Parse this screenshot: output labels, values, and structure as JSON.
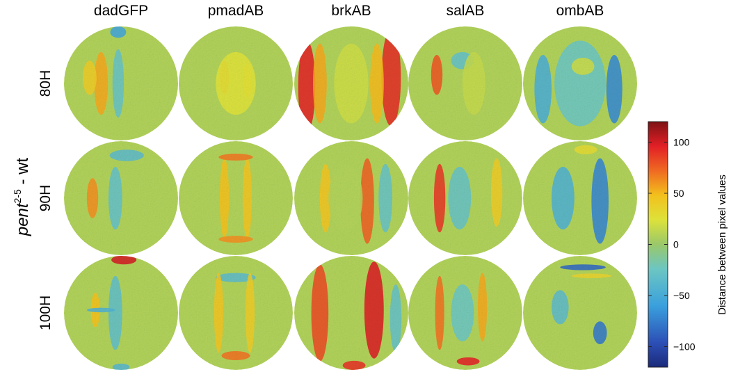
{
  "chart_data": {
    "type": "heatmap",
    "y_group_label": {
      "base": "pent",
      "sup": "2-5",
      "suffix": " - wt"
    },
    "columns": [
      "dadGFP",
      "pmadAB",
      "brkAB",
      "salAB",
      "ombAB"
    ],
    "rows": [
      "80H",
      "90H",
      "100H"
    ],
    "colorbar": {
      "label": "Distance between pixel values",
      "range": [
        -120,
        120
      ],
      "ticks": [
        100,
        50,
        0,
        -50,
        -100
      ],
      "tick_labels": [
        "100",
        "50",
        "0",
        "−50",
        "−100"
      ],
      "colormap": "jet"
    },
    "panels": [
      {
        "row": "80H",
        "col": "dadGFP",
        "features": [
          {
            "u": -0.35,
            "v": 0,
            "w": 0.12,
            "h": 0.55,
            "val": 55
          },
          {
            "u": -0.05,
            "v": 0,
            "w": 0.1,
            "h": 0.6,
            "val": -28
          },
          {
            "u": -0.05,
            "v": -0.9,
            "w": 0.14,
            "h": 0.1,
            "val": -55
          },
          {
            "u": -0.55,
            "v": -0.1,
            "w": 0.12,
            "h": 0.3,
            "val": 40
          }
        ]
      },
      {
        "row": "80H",
        "col": "pmadAB",
        "features": [
          {
            "u": -0.2,
            "v": -0.1,
            "w": 0.08,
            "h": 0.3,
            "val": 58
          },
          {
            "u": 0.2,
            "v": -0.05,
            "w": 0.08,
            "h": 0.3,
            "val": 48
          },
          {
            "u": 0,
            "v": 0,
            "w": 0.35,
            "h": 0.55,
            "val": 25
          }
        ]
      },
      {
        "row": "80H",
        "col": "brkAB",
        "features": [
          {
            "u": -0.78,
            "v": 0.05,
            "w": 0.15,
            "h": 0.8,
            "val": 95
          },
          {
            "u": 0.7,
            "v": -0.1,
            "w": 0.17,
            "h": 0.85,
            "val": 92
          },
          {
            "u": -0.55,
            "v": 0,
            "w": 0.12,
            "h": 0.7,
            "val": 55
          },
          {
            "u": 0.45,
            "v": 0,
            "w": 0.12,
            "h": 0.7,
            "val": 50
          },
          {
            "u": 0,
            "v": 0,
            "w": 0.3,
            "h": 0.7,
            "val": 18
          }
        ]
      },
      {
        "row": "80H",
        "col": "salAB",
        "features": [
          {
            "u": -0.5,
            "v": -0.15,
            "w": 0.1,
            "h": 0.35,
            "val": 78
          },
          {
            "u": -0.05,
            "v": -0.4,
            "w": 0.2,
            "h": 0.15,
            "val": -30
          },
          {
            "u": 0.15,
            "v": 0,
            "w": 0.2,
            "h": 0.55,
            "val": 15
          }
        ]
      },
      {
        "row": "80H",
        "col": "ombAB",
        "features": [
          {
            "u": 0.6,
            "v": 0.1,
            "w": 0.14,
            "h": 0.6,
            "val": -70
          },
          {
            "u": -0.65,
            "v": 0.1,
            "w": 0.15,
            "h": 0.6,
            "val": -48
          },
          {
            "u": 0,
            "v": 0,
            "w": 0.45,
            "h": 0.75,
            "val": -25
          },
          {
            "u": 0.05,
            "v": -0.3,
            "w": 0.2,
            "h": 0.15,
            "val": 18
          }
        ]
      },
      {
        "row": "90H",
        "col": "dadGFP",
        "features": [
          {
            "u": -0.5,
            "v": 0,
            "w": 0.1,
            "h": 0.35,
            "val": 62
          },
          {
            "u": -0.1,
            "v": 0,
            "w": 0.12,
            "h": 0.55,
            "val": -30
          },
          {
            "u": 0.1,
            "v": -0.75,
            "w": 0.3,
            "h": 0.1,
            "val": -35
          }
        ]
      },
      {
        "row": "90H",
        "col": "pmadAB",
        "features": [
          {
            "u": -0.2,
            "v": 0,
            "w": 0.08,
            "h": 0.7,
            "val": 48
          },
          {
            "u": 0.2,
            "v": 0,
            "w": 0.08,
            "h": 0.7,
            "val": 45
          },
          {
            "u": 0,
            "v": -0.72,
            "w": 0.3,
            "h": 0.06,
            "val": 68
          },
          {
            "u": 0,
            "v": 0.72,
            "w": 0.3,
            "h": 0.06,
            "val": 62
          }
        ]
      },
      {
        "row": "90H",
        "col": "brkAB",
        "features": [
          {
            "u": 0.28,
            "v": 0.05,
            "w": 0.12,
            "h": 0.75,
            "val": 75
          },
          {
            "u": -0.45,
            "v": 0,
            "w": 0.1,
            "h": 0.6,
            "val": 45
          },
          {
            "u": 0.6,
            "v": 0,
            "w": 0.12,
            "h": 0.6,
            "val": -28
          },
          {
            "u": -0.1,
            "v": 0,
            "w": 0.3,
            "h": 0.6,
            "val": 8
          }
        ]
      },
      {
        "row": "90H",
        "col": "salAB",
        "features": [
          {
            "u": -0.45,
            "v": 0,
            "w": 0.1,
            "h": 0.6,
            "val": 88
          },
          {
            "u": -0.1,
            "v": 0,
            "w": 0.2,
            "h": 0.55,
            "val": -28
          },
          {
            "u": 0.55,
            "v": -0.1,
            "w": 0.1,
            "h": 0.6,
            "val": 40
          }
        ]
      },
      {
        "row": "90H",
        "col": "ombAB",
        "features": [
          {
            "u": 0.35,
            "v": 0.05,
            "w": 0.15,
            "h": 0.75,
            "val": -72
          },
          {
            "u": -0.3,
            "v": 0,
            "w": 0.2,
            "h": 0.55,
            "val": -45
          },
          {
            "u": 0.1,
            "v": -0.85,
            "w": 0.2,
            "h": 0.08,
            "val": 30
          }
        ]
      },
      {
        "row": "100H",
        "col": "dadGFP",
        "features": [
          {
            "u": 0.05,
            "v": -0.93,
            "w": 0.22,
            "h": 0.08,
            "val": 100
          },
          {
            "u": -0.45,
            "v": -0.05,
            "w": 0.08,
            "h": 0.3,
            "val": 48
          },
          {
            "u": -0.1,
            "v": 0,
            "w": 0.12,
            "h": 0.65,
            "val": -32
          },
          {
            "u": -0.35,
            "v": -0.05,
            "w": 0.25,
            "h": 0.04,
            "val": -45
          },
          {
            "u": 0,
            "v": 0.95,
            "w": 0.15,
            "h": 0.06,
            "val": -40
          }
        ]
      },
      {
        "row": "100H",
        "col": "pmadAB",
        "features": [
          {
            "u": 0,
            "v": -0.62,
            "w": 0.35,
            "h": 0.08,
            "val": -35
          },
          {
            "u": 0,
            "v": 0.75,
            "w": 0.25,
            "h": 0.08,
            "val": 70
          },
          {
            "u": -0.3,
            "v": 0,
            "w": 0.08,
            "h": 0.7,
            "val": 45
          },
          {
            "u": 0.25,
            "v": 0,
            "w": 0.08,
            "h": 0.7,
            "val": 40
          }
        ]
      },
      {
        "row": "100H",
        "col": "brkAB",
        "features": [
          {
            "u": -0.55,
            "v": 0,
            "w": 0.15,
            "h": 0.85,
            "val": 82
          },
          {
            "u": 0.4,
            "v": -0.05,
            "w": 0.17,
            "h": 0.85,
            "val": 98
          },
          {
            "u": 0.78,
            "v": 0.1,
            "w": 0.1,
            "h": 0.6,
            "val": -30
          },
          {
            "u": 0.05,
            "v": 0.92,
            "w": 0.2,
            "h": 0.08,
            "val": 90
          }
        ]
      },
      {
        "row": "100H",
        "col": "salAB",
        "features": [
          {
            "u": -0.45,
            "v": 0,
            "w": 0.08,
            "h": 0.65,
            "val": 70
          },
          {
            "u": 0.3,
            "v": -0.1,
            "w": 0.08,
            "h": 0.6,
            "val": 55
          },
          {
            "u": 0.05,
            "v": 0.85,
            "w": 0.2,
            "h": 0.07,
            "val": 95
          },
          {
            "u": -0.05,
            "v": 0,
            "w": 0.2,
            "h": 0.5,
            "val": -25
          }
        ]
      },
      {
        "row": "100H",
        "col": "ombAB",
        "features": [
          {
            "u": 0.05,
            "v": -0.8,
            "w": 0.4,
            "h": 0.05,
            "val": -85
          },
          {
            "u": 0.2,
            "v": -0.65,
            "w": 0.35,
            "h": 0.04,
            "val": 35
          },
          {
            "u": 0.35,
            "v": 0.35,
            "w": 0.12,
            "h": 0.2,
            "val": -78
          },
          {
            "u": -0.35,
            "v": -0.1,
            "w": 0.15,
            "h": 0.3,
            "val": -35
          }
        ]
      }
    ]
  }
}
